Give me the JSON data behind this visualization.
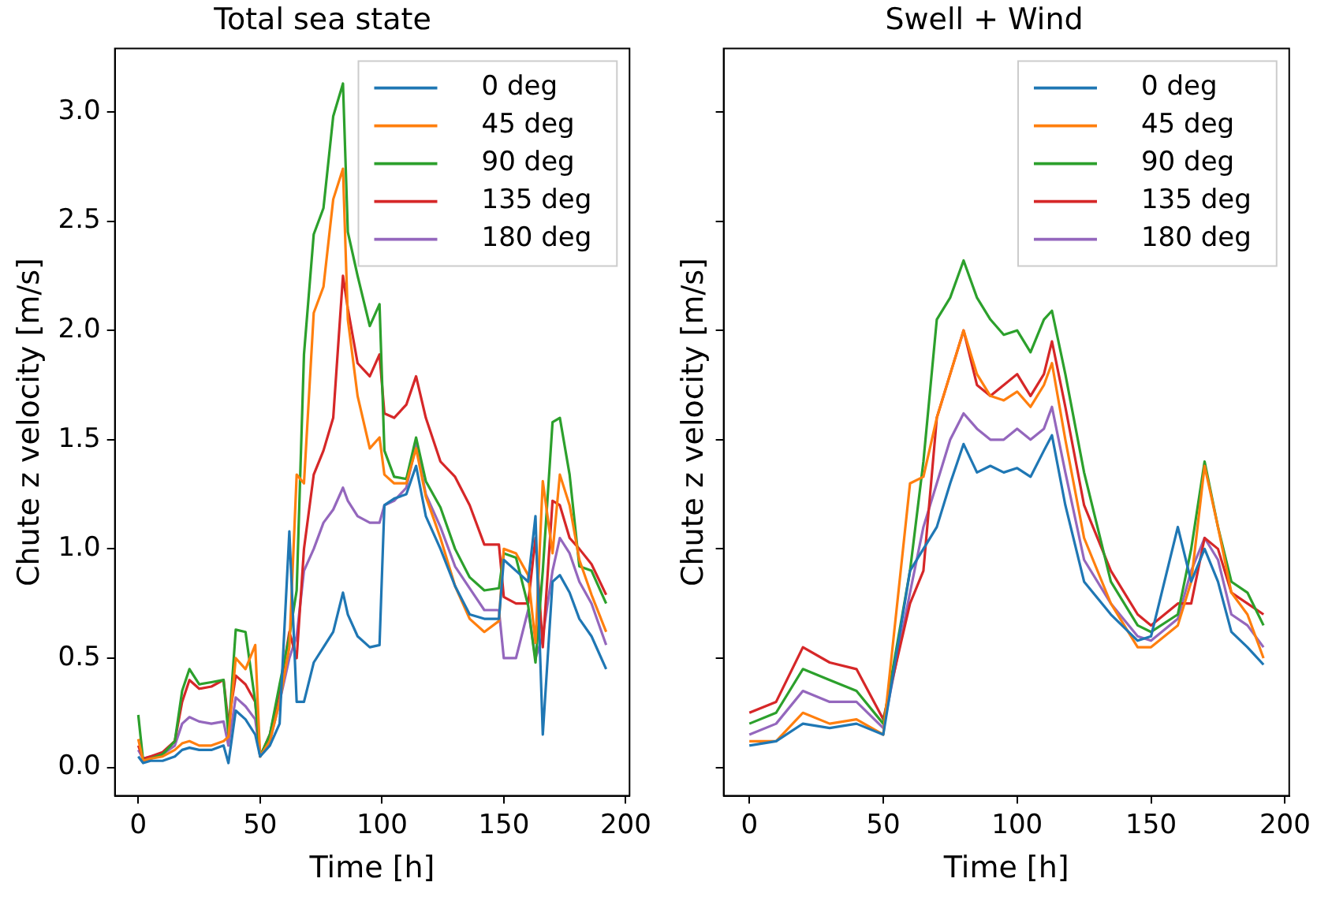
{
  "chart_data": [
    {
      "type": "line",
      "title": "Total sea state",
      "xlabel": "Time [h]",
      "ylabel": "Chute z velocity [m/s]",
      "legend": "top right",
      "grid": false,
      "xlim": [
        -9.6,
        201.6
      ],
      "ylim": [
        -0.13,
        3.29
      ],
      "xticks": [
        0,
        50,
        100,
        150,
        200
      ],
      "yticks": [
        {
          "value": 0,
          "label": "0.0"
        },
        0.5,
        {
          "value": 1,
          "label": "1.0"
        },
        1.5,
        {
          "value": 2,
          "label": "2.0"
        },
        2.5,
        {
          "value": 3,
          "label": "3.0"
        }
      ],
      "x": [
        0,
        2,
        5,
        10,
        15,
        18,
        21,
        25,
        30,
        35,
        37,
        40,
        44,
        48,
        50,
        54,
        58,
        62,
        65,
        68,
        72,
        76,
        80,
        84,
        86,
        90,
        95,
        99,
        101,
        105,
        110,
        114,
        118,
        124,
        130,
        136,
        142,
        148,
        150,
        155,
        160,
        163,
        166,
        170,
        173,
        177,
        181,
        186,
        192
      ],
      "series": [
        {
          "name": "0 deg",
          "color": "#1f77b4",
          "values": [
            0.05,
            0.02,
            0.03,
            0.03,
            0.05,
            0.08,
            0.09,
            0.08,
            0.08,
            0.1,
            0.02,
            0.26,
            0.22,
            0.15,
            0.05,
            0.1,
            0.2,
            1.08,
            0.3,
            0.3,
            0.48,
            0.55,
            0.62,
            0.8,
            0.7,
            0.6,
            0.55,
            0.56,
            1.2,
            1.23,
            1.25,
            1.38,
            1.15,
            1.0,
            0.83,
            0.7,
            0.68,
            0.68,
            0.95,
            0.9,
            0.85,
            1.15,
            0.15,
            0.85,
            0.88,
            0.8,
            0.68,
            0.6,
            0.45
          ]
        },
        {
          "name": "45 deg",
          "color": "#ff7f0e",
          "values": [
            0.13,
            0.03,
            0.04,
            0.05,
            0.08,
            0.11,
            0.12,
            0.1,
            0.1,
            0.12,
            0.14,
            0.5,
            0.45,
            0.56,
            0.05,
            0.12,
            0.3,
            0.55,
            1.34,
            1.3,
            2.08,
            2.2,
            2.6,
            2.74,
            2.05,
            1.7,
            1.46,
            1.51,
            1.34,
            1.3,
            1.3,
            1.46,
            1.24,
            1.05,
            0.83,
            0.68,
            0.62,
            0.67,
            1.0,
            0.98,
            0.88,
            0.57,
            1.31,
            0.98,
            1.34,
            1.2,
            0.95,
            0.79,
            0.62
          ]
        },
        {
          "name": "90 deg",
          "color": "#2ca02c",
          "values": [
            0.24,
            0.03,
            0.04,
            0.06,
            0.12,
            0.35,
            0.45,
            0.38,
            0.39,
            0.4,
            0.15,
            0.63,
            0.62,
            0.3,
            0.05,
            0.15,
            0.38,
            0.6,
            0.81,
            1.89,
            2.44,
            2.56,
            2.98,
            3.13,
            2.45,
            2.25,
            2.02,
            2.12,
            1.45,
            1.33,
            1.32,
            1.51,
            1.31,
            1.19,
            1.0,
            0.87,
            0.81,
            0.82,
            0.98,
            0.96,
            0.74,
            0.48,
            0.9,
            1.58,
            1.6,
            1.34,
            0.92,
            0.9,
            0.75
          ]
        },
        {
          "name": "135 deg",
          "color": "#d62728",
          "values": [
            0.1,
            0.04,
            0.05,
            0.07,
            0.12,
            0.3,
            0.4,
            0.36,
            0.37,
            0.4,
            0.2,
            0.42,
            0.38,
            0.3,
            0.05,
            0.15,
            0.35,
            0.62,
            0.5,
            1.0,
            1.34,
            1.45,
            1.6,
            2.25,
            2.1,
            1.85,
            1.79,
            1.89,
            1.62,
            1.6,
            1.66,
            1.79,
            1.6,
            1.4,
            1.33,
            1.2,
            1.02,
            1.02,
            0.78,
            0.75,
            0.75,
            1.05,
            0.55,
            1.22,
            1.2,
            1.05,
            1.0,
            0.93,
            0.79
          ]
        },
        {
          "name": "180 deg",
          "color": "#9467bd",
          "values": [
            0.08,
            0.04,
            0.05,
            0.06,
            0.1,
            0.2,
            0.23,
            0.21,
            0.2,
            0.21,
            0.1,
            0.32,
            0.28,
            0.22,
            0.05,
            0.12,
            0.3,
            0.5,
            0.6,
            0.9,
            1.0,
            1.12,
            1.18,
            1.28,
            1.22,
            1.15,
            1.12,
            1.12,
            1.2,
            1.22,
            1.28,
            1.48,
            1.25,
            1.1,
            0.92,
            0.82,
            0.72,
            0.72,
            0.5,
            0.5,
            0.72,
            0.5,
            0.6,
            0.9,
            1.05,
            0.98,
            0.85,
            0.75,
            0.56
          ]
        }
      ]
    },
    {
      "type": "line",
      "title": "Swell + Wind",
      "xlabel": "Time [h]",
      "ylabel": "Chute z velocity [m/s]",
      "legend": "top right",
      "grid": false,
      "tick_labels": "x",
      "xlim": [
        -9.6,
        201.6
      ],
      "ylim": [
        -0.13,
        3.29
      ],
      "xticks": [
        0,
        50,
        100,
        150,
        200
      ],
      "yticks": [
        0,
        0.5,
        1,
        1.5,
        2,
        2.5,
        3
      ],
      "x": [
        0,
        10,
        20,
        30,
        40,
        50,
        60,
        65,
        70,
        75,
        80,
        85,
        90,
        95,
        100,
        105,
        110,
        113,
        118,
        125,
        135,
        145,
        150,
        160,
        165,
        170,
        175,
        180,
        186,
        192
      ],
      "series": [
        {
          "name": "0 deg",
          "color": "#1f77b4",
          "values": [
            0.1,
            0.12,
            0.2,
            0.18,
            0.2,
            0.15,
            0.9,
            1.0,
            1.1,
            1.3,
            1.48,
            1.35,
            1.38,
            1.35,
            1.37,
            1.33,
            1.45,
            1.52,
            1.2,
            0.85,
            0.7,
            0.58,
            0.6,
            1.1,
            0.85,
            1.0,
            0.85,
            0.62,
            0.55,
            0.47
          ]
        },
        {
          "name": "45 deg",
          "color": "#ff7f0e",
          "values": [
            0.12,
            0.12,
            0.25,
            0.2,
            0.22,
            0.15,
            1.3,
            1.33,
            1.6,
            1.8,
            2.0,
            1.8,
            1.7,
            1.68,
            1.72,
            1.65,
            1.75,
            1.85,
            1.5,
            1.05,
            0.75,
            0.55,
            0.55,
            0.65,
            0.85,
            1.38,
            1.1,
            0.8,
            0.7,
            0.5
          ]
        },
        {
          "name": "90 deg",
          "color": "#2ca02c",
          "values": [
            0.2,
            0.25,
            0.45,
            0.4,
            0.35,
            0.2,
            0.9,
            1.4,
            2.05,
            2.15,
            2.32,
            2.15,
            2.05,
            1.98,
            2.0,
            1.9,
            2.05,
            2.09,
            1.8,
            1.35,
            0.85,
            0.65,
            0.62,
            0.7,
            1.0,
            1.4,
            1.1,
            0.85,
            0.8,
            0.65
          ]
        },
        {
          "name": "135 deg",
          "color": "#d62728",
          "values": [
            0.25,
            0.3,
            0.55,
            0.48,
            0.45,
            0.22,
            0.75,
            0.9,
            1.6,
            1.8,
            2.0,
            1.75,
            1.7,
            1.75,
            1.8,
            1.7,
            1.8,
            1.95,
            1.65,
            1.2,
            0.9,
            0.7,
            0.65,
            0.75,
            0.75,
            1.05,
            1.0,
            0.8,
            0.75,
            0.7
          ]
        },
        {
          "name": "180 deg",
          "color": "#9467bd",
          "values": [
            0.15,
            0.2,
            0.35,
            0.3,
            0.3,
            0.18,
            0.8,
            1.1,
            1.3,
            1.5,
            1.62,
            1.55,
            1.5,
            1.5,
            1.55,
            1.5,
            1.55,
            1.65,
            1.35,
            0.95,
            0.75,
            0.6,
            0.58,
            0.68,
            0.9,
            1.05,
            0.95,
            0.7,
            0.65,
            0.55
          ]
        }
      ]
    }
  ]
}
